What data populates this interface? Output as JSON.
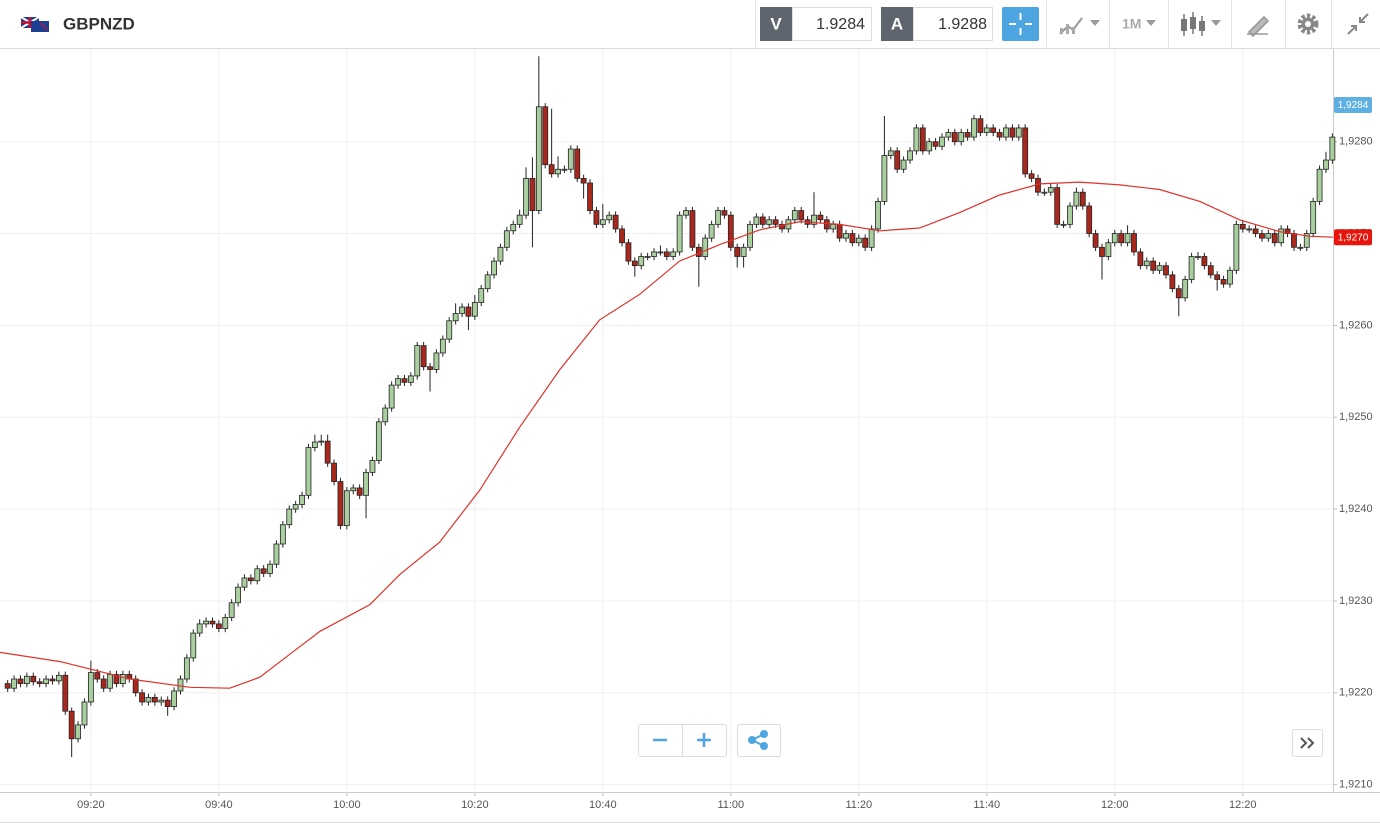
{
  "toolbar": {
    "symbol": "GBPNZD",
    "bid_label": "V",
    "bid": "1.9284",
    "ask_label": "A",
    "ask": "1.9288",
    "timeframe": "1M"
  },
  "chart_data": {
    "type": "candlestick",
    "x": [
      547,
      548,
      549,
      550,
      551,
      552,
      553,
      554,
      555,
      556,
      557,
      558,
      559,
      560,
      561,
      562,
      563,
      564,
      565,
      566,
      567,
      568,
      569,
      570,
      571,
      572,
      573,
      574,
      575,
      576,
      577,
      578,
      579,
      580,
      581,
      582,
      583,
      584,
      585,
      586,
      587,
      588,
      589,
      590,
      591,
      592,
      593,
      594,
      595,
      596,
      597,
      598,
      599,
      600,
      601,
      602,
      603,
      604,
      605,
      606,
      607,
      608,
      609,
      610,
      611,
      612,
      613,
      614,
      615,
      616,
      617,
      618,
      619,
      620,
      621,
      622,
      623,
      624,
      625,
      626,
      627,
      628,
      629,
      630,
      631,
      632,
      633,
      634,
      635,
      636,
      637,
      638,
      639,
      640,
      641,
      642,
      643,
      644,
      645,
      646,
      647,
      648,
      649,
      650,
      651,
      652,
      653,
      654,
      655,
      656,
      657,
      658,
      659,
      660,
      661,
      662,
      663,
      664,
      665,
      666,
      667,
      668,
      669,
      670,
      671,
      672,
      673,
      674,
      675,
      676,
      677,
      678,
      679,
      680,
      681,
      682,
      683,
      684,
      685,
      686,
      687,
      688,
      689,
      690,
      691,
      692,
      693,
      694,
      695,
      696,
      697,
      698,
      699,
      700,
      701,
      702,
      703,
      704,
      705,
      706,
      707,
      708,
      709,
      710,
      711,
      712,
      713,
      714,
      715,
      716,
      717,
      718,
      719,
      720,
      721,
      722,
      723,
      724,
      725,
      726,
      727,
      728,
      729,
      730,
      731,
      732,
      733,
      734,
      735,
      736,
      737,
      738,
      739,
      740,
      741,
      742,
      743,
      744,
      745,
      746,
      747,
      748,
      749,
      750,
      751,
      752,
      753,
      754
    ],
    "open": [
      1.9221,
      1.92205,
      1.92215,
      1.9221,
      1.92218,
      1.92212,
      1.9221,
      1.92215,
      1.92213,
      1.92219,
      1.9218,
      1.9215,
      1.92165,
      1.9219,
      1.92222,
      1.92215,
      1.92205,
      1.9222,
      1.9221,
      1.9222,
      1.92215,
      1.922,
      1.9219,
      1.92195,
      1.9219,
      1.92192,
      1.92185,
      1.92202,
      1.92215,
      1.92238,
      1.92265,
      1.92275,
      1.92278,
      1.92275,
      1.9227,
      1.92282,
      1.92298,
      1.92315,
      1.92325,
      1.92322,
      1.92335,
      1.9233,
      1.9234,
      1.92362,
      1.92383,
      1.924,
      1.92405,
      1.92415,
      1.92467,
      1.92473,
      1.92474,
      1.9245,
      1.9243,
      1.92382,
      1.9242,
      1.92423,
      1.92415,
      1.9244,
      1.92453,
      1.92495,
      1.9251,
      1.92535,
      1.92542,
      1.92538,
      1.92545,
      1.92578,
      1.92555,
      1.92552,
      1.9257,
      1.92585,
      1.92605,
      1.92613,
      1.9262,
      1.9261,
      1.92625,
      1.9264,
      1.92655,
      1.9267,
      1.92685,
      1.92703,
      1.9271,
      1.9272,
      1.9276,
      1.92725,
      1.92838,
      1.92775,
      1.92765,
      1.9277,
      1.9277,
      1.92792,
      1.9276,
      1.92755,
      1.92725,
      1.9271,
      1.92715,
      1.9272,
      1.92705,
      1.9269,
      1.9267,
      1.92665,
      1.92675,
      1.92675,
      1.9268,
      1.9268,
      1.92675,
      1.9268,
      1.9272,
      1.92725,
      1.92685,
      1.92675,
      1.92695,
      1.9271,
      1.92725,
      1.9272,
      1.92685,
      1.92675,
      1.92685,
      1.9271,
      1.92718,
      1.9271,
      1.92715,
      1.9271,
      1.92705,
      1.92715,
      1.92725,
      1.92715,
      1.9271,
      1.9272,
      1.92715,
      1.92705,
      1.9271,
      1.92695,
      1.927,
      1.9269,
      1.92695,
      1.92685,
      1.92705,
      1.92735,
      1.92785,
      1.9279,
      1.9277,
      1.9278,
      1.9279,
      1.92815,
      1.9279,
      1.928,
      1.92795,
      1.92805,
      1.9281,
      1.928,
      1.9281,
      1.92805,
      1.92825,
      1.9281,
      1.92815,
      1.9281,
      1.92805,
      1.92815,
      1.92805,
      1.92815,
      1.92765,
      1.9276,
      1.92745,
      1.92745,
      1.9275,
      1.9271,
      1.9271,
      1.9273,
      1.92745,
      1.9273,
      1.927,
      1.92685,
      1.92675,
      1.9269,
      1.927,
      1.9269,
      1.927,
      1.9268,
      1.92665,
      1.9267,
      1.9266,
      1.92665,
      1.92655,
      1.9264,
      1.9263,
      1.9265,
      1.92675,
      1.92675,
      1.92665,
      1.92655,
      1.9265,
      1.92645,
      1.9266,
      1.9271,
      1.92705,
      1.92705,
      1.927,
      1.92695,
      1.927,
      1.9269,
      1.92705,
      1.927,
      1.92685,
      1.92685,
      1.927,
      1.92735,
      1.9277,
      1.9278
    ],
    "high": [
      1.92214,
      1.92219,
      1.92219,
      1.92222,
      1.92222,
      1.92216,
      1.92219,
      1.92219,
      1.92223,
      1.92223,
      1.92184,
      1.92169,
      1.92194,
      1.92235,
      1.92226,
      1.92219,
      1.92224,
      1.92224,
      1.92224,
      1.92224,
      1.92219,
      1.92204,
      1.92199,
      1.92199,
      1.92196,
      1.92196,
      1.92206,
      1.92219,
      1.92242,
      1.92269,
      1.9228,
      1.92282,
      1.92282,
      1.92279,
      1.92286,
      1.92302,
      1.92319,
      1.92329,
      1.92329,
      1.92339,
      1.92339,
      1.92344,
      1.92366,
      1.92387,
      1.92404,
      1.92409,
      1.92419,
      1.92471,
      1.92481,
      1.92481,
      1.92481,
      1.92454,
      1.92434,
      1.92424,
      1.92427,
      1.92427,
      1.92444,
      1.92457,
      1.92499,
      1.92514,
      1.92539,
      1.92546,
      1.92546,
      1.92549,
      1.92582,
      1.92582,
      1.92559,
      1.92574,
      1.92589,
      1.92609,
      1.92624,
      1.92624,
      1.92624,
      1.92633,
      1.92644,
      1.92659,
      1.92674,
      1.92689,
      1.92707,
      1.92714,
      1.92726,
      1.92772,
      1.92783,
      1.92893,
      1.92842,
      1.92836,
      1.92784,
      1.92774,
      1.92796,
      1.92796,
      1.92764,
      1.92759,
      1.92729,
      1.92732,
      1.92724,
      1.92724,
      1.92709,
      1.92694,
      1.92674,
      1.92679,
      1.92679,
      1.92684,
      1.92687,
      1.92684,
      1.92684,
      1.92724,
      1.92729,
      1.92729,
      1.92689,
      1.92699,
      1.92714,
      1.92729,
      1.92729,
      1.92724,
      1.92689,
      1.92689,
      1.92714,
      1.92722,
      1.92722,
      1.92719,
      1.92719,
      1.92714,
      1.92719,
      1.92729,
      1.92729,
      1.92719,
      1.92745,
      1.92724,
      1.92719,
      1.92714,
      1.92714,
      1.92704,
      1.92704,
      1.92699,
      1.92699,
      1.92709,
      1.92739,
      1.92828,
      1.92794,
      1.92794,
      1.92784,
      1.92794,
      1.92819,
      1.92819,
      1.92804,
      1.92804,
      1.92809,
      1.92814,
      1.92814,
      1.92814,
      1.92814,
      1.92829,
      1.92829,
      1.92819,
      1.92819,
      1.92814,
      1.92819,
      1.92819,
      1.92819,
      1.92819,
      1.92769,
      1.92764,
      1.92749,
      1.92754,
      1.92754,
      1.92714,
      1.92734,
      1.9275,
      1.92749,
      1.92734,
      1.92704,
      1.92689,
      1.92694,
      1.92704,
      1.92704,
      1.92709,
      1.92704,
      1.92684,
      1.92674,
      1.92674,
      1.92669,
      1.92669,
      1.92659,
      1.92644,
      1.92654,
      1.92679,
      1.9268,
      1.92679,
      1.92669,
      1.92659,
      1.92654,
      1.92664,
      1.92714,
      1.92714,
      1.92709,
      1.92709,
      1.92704,
      1.92704,
      1.92704,
      1.92709,
      1.92709,
      1.92704,
      1.92689,
      1.92704,
      1.92739,
      1.92774,
      1.92789,
      1.92809
    ],
    "low": [
      1.92201,
      1.92201,
      1.92206,
      1.92206,
      1.92208,
      1.92206,
      1.92206,
      1.92209,
      1.92209,
      1.92176,
      1.9213,
      1.92146,
      1.92161,
      1.92186,
      1.92211,
      1.92201,
      1.92201,
      1.92206,
      1.92206,
      1.92211,
      1.92196,
      1.92186,
      1.92186,
      1.92186,
      1.92186,
      1.92175,
      1.92181,
      1.92198,
      1.92211,
      1.92234,
      1.92261,
      1.92271,
      1.92271,
      1.92266,
      1.92266,
      1.92278,
      1.92294,
      1.92311,
      1.92318,
      1.92318,
      1.92326,
      1.92326,
      1.92336,
      1.92358,
      1.92379,
      1.92396,
      1.92401,
      1.92411,
      1.92463,
      1.92469,
      1.92446,
      1.92426,
      1.92378,
      1.92378,
      1.92416,
      1.92411,
      1.9239,
      1.92436,
      1.92449,
      1.92491,
      1.92506,
      1.92531,
      1.92534,
      1.92534,
      1.92541,
      1.92551,
      1.92528,
      1.92548,
      1.92566,
      1.92581,
      1.92601,
      1.92609,
      1.92595,
      1.92606,
      1.92621,
      1.92636,
      1.92651,
      1.92666,
      1.92681,
      1.92699,
      1.92706,
      1.92716,
      1.92685,
      1.92721,
      1.92771,
      1.92761,
      1.92761,
      1.92766,
      1.92766,
      1.92756,
      1.92738,
      1.92721,
      1.92706,
      1.92706,
      1.92711,
      1.92701,
      1.92686,
      1.92666,
      1.92653,
      1.92661,
      1.92671,
      1.92671,
      1.92676,
      1.92671,
      1.92671,
      1.92676,
      1.92716,
      1.92681,
      1.92642,
      1.92671,
      1.92691,
      1.92706,
      1.92716,
      1.92681,
      1.92663,
      1.92663,
      1.92681,
      1.92706,
      1.92706,
      1.92706,
      1.92706,
      1.92701,
      1.92701,
      1.92711,
      1.92711,
      1.92706,
      1.92706,
      1.92711,
      1.92701,
      1.92701,
      1.92691,
      1.92691,
      1.92686,
      1.92686,
      1.92681,
      1.92681,
      1.92701,
      1.92731,
      1.92781,
      1.92766,
      1.92766,
      1.92776,
      1.92786,
      1.92786,
      1.92786,
      1.92791,
      1.92791,
      1.92801,
      1.92796,
      1.92796,
      1.92801,
      1.92801,
      1.92806,
      1.92806,
      1.92806,
      1.92801,
      1.92801,
      1.92801,
      1.92801,
      1.92761,
      1.92756,
      1.92741,
      1.92741,
      1.92741,
      1.92706,
      1.92706,
      1.92706,
      1.92726,
      1.92726,
      1.92696,
      1.92681,
      1.9265,
      1.92671,
      1.92686,
      1.92686,
      1.92686,
      1.92676,
      1.92661,
      1.92661,
      1.92656,
      1.92656,
      1.92651,
      1.92636,
      1.9261,
      1.92626,
      1.92646,
      1.92671,
      1.92661,
      1.92651,
      1.92638,
      1.92641,
      1.92641,
      1.92656,
      1.92701,
      1.92701,
      1.92696,
      1.92691,
      1.92691,
      1.92686,
      1.92686,
      1.92696,
      1.92681,
      1.92681,
      1.92681,
      1.92696,
      1.92731,
      1.92766,
      1.92776
    ],
    "close": [
      1.92205,
      1.92215,
      1.9221,
      1.92218,
      1.92212,
      1.9221,
      1.92215,
      1.92213,
      1.92219,
      1.9218,
      1.9215,
      1.92165,
      1.9219,
      1.92222,
      1.92215,
      1.92205,
      1.9222,
      1.9221,
      1.9222,
      1.92215,
      1.922,
      1.9219,
      1.92195,
      1.9219,
      1.92192,
      1.92185,
      1.92202,
      1.92215,
      1.92238,
      1.92265,
      1.92275,
      1.92278,
      1.92275,
      1.9227,
      1.92282,
      1.92298,
      1.92315,
      1.92325,
      1.92322,
      1.92335,
      1.9233,
      1.9234,
      1.92362,
      1.92383,
      1.924,
      1.92405,
      1.92415,
      1.92467,
      1.92473,
      1.92474,
      1.9245,
      1.9243,
      1.92382,
      1.9242,
      1.92423,
      1.92415,
      1.9244,
      1.92453,
      1.92495,
      1.9251,
      1.92535,
      1.92542,
      1.92538,
      1.92545,
      1.92578,
      1.92555,
      1.92552,
      1.9257,
      1.92585,
      1.92605,
      1.92613,
      1.9262,
      1.9261,
      1.92625,
      1.9264,
      1.92655,
      1.9267,
      1.92685,
      1.92703,
      1.9271,
      1.9272,
      1.9276,
      1.92725,
      1.92838,
      1.92775,
      1.92765,
      1.9277,
      1.9277,
      1.92792,
      1.9276,
      1.92755,
      1.92725,
      1.9271,
      1.92715,
      1.9272,
      1.92705,
      1.9269,
      1.9267,
      1.92665,
      1.92675,
      1.92675,
      1.9268,
      1.9268,
      1.92675,
      1.9268,
      1.9272,
      1.92725,
      1.92685,
      1.92675,
      1.92695,
      1.9271,
      1.92725,
      1.9272,
      1.92685,
      1.92675,
      1.92685,
      1.9271,
      1.92718,
      1.9271,
      1.92715,
      1.9271,
      1.92705,
      1.92715,
      1.92725,
      1.92715,
      1.9271,
      1.9272,
      1.92715,
      1.92705,
      1.9271,
      1.92695,
      1.927,
      1.9269,
      1.92695,
      1.92685,
      1.92705,
      1.92735,
      1.92785,
      1.9279,
      1.9277,
      1.9278,
      1.9279,
      1.92815,
      1.9279,
      1.928,
      1.92795,
      1.92805,
      1.9281,
      1.928,
      1.9281,
      1.92805,
      1.92825,
      1.9281,
      1.92815,
      1.9281,
      1.92805,
      1.92815,
      1.92805,
      1.92815,
      1.92765,
      1.9276,
      1.92745,
      1.92745,
      1.9275,
      1.9271,
      1.9271,
      1.9273,
      1.92745,
      1.9273,
      1.927,
      1.92685,
      1.92675,
      1.9269,
      1.927,
      1.9269,
      1.927,
      1.9268,
      1.92665,
      1.9267,
      1.9266,
      1.92665,
      1.92655,
      1.9264,
      1.9263,
      1.9265,
      1.92675,
      1.92675,
      1.92665,
      1.92655,
      1.9265,
      1.92645,
      1.9266,
      1.9271,
      1.92705,
      1.92705,
      1.927,
      1.92695,
      1.927,
      1.9269,
      1.92705,
      1.927,
      1.92685,
      1.92685,
      1.927,
      1.92735,
      1.9277,
      1.9278,
      1.92805
    ],
    "up_color": "#a9cf9f",
    "down_color": "#a9281e",
    "overlays": [
      {
        "type": "line",
        "color": "#e0312b",
        "x": [
          545.8,
          555.2,
          566.1,
          575.5,
          581.7,
          586.4,
          591.1,
          595.8,
          603.6,
          608.3,
          614.5,
          620.8,
          627.0,
          633.3,
          639.5,
          645.8,
          652.0,
          658.3,
          664.5,
          670.8,
          677.0,
          683.3,
          689.5,
          695.8,
          702.0,
          708.3,
          714.5,
          720.8,
          727.0,
          733.3,
          739.5,
          745.8,
          750.5,
          754.1
        ],
        "values": [
          1.92244,
          1.92234,
          1.92215,
          1.92206,
          1.92205,
          1.92217,
          1.92242,
          1.92267,
          1.92296,
          1.92329,
          1.92364,
          1.92421,
          1.92489,
          1.92552,
          1.92606,
          1.92634,
          1.9267,
          1.92688,
          1.92704,
          1.92713,
          1.9271,
          1.92703,
          1.92706,
          1.92723,
          1.92742,
          1.92754,
          1.92756,
          1.92753,
          1.92748,
          1.92735,
          1.92715,
          1.92702,
          1.92697,
          1.92696
        ]
      }
    ],
    "price_labels": [
      {
        "value": 1.9284,
        "label": "1,9284",
        "color": "#5fb0e2"
      },
      {
        "value": 1.92696,
        "label": "1,9270",
        "color": "#e8150c"
      }
    ],
    "xlim": [
      545.8,
      754.1
    ],
    "ylim": [
      1.92092,
      1.92902
    ],
    "xticks": [
      {
        "value": 560,
        "label": "09:20"
      },
      {
        "value": 580,
        "label": "09:40"
      },
      {
        "value": 600,
        "label": "10:00"
      },
      {
        "value": 620,
        "label": "10:20"
      },
      {
        "value": 640,
        "label": "10:40"
      },
      {
        "value": 660,
        "label": "11:00"
      },
      {
        "value": 680,
        "label": "11:20"
      },
      {
        "value": 700,
        "label": "11:40"
      },
      {
        "value": 720,
        "label": "12:00"
      },
      {
        "value": 740,
        "label": "12:20"
      }
    ],
    "yticks": [
      {
        "value": 1.921,
        "label": "1,9210"
      },
      {
        "value": 1.922,
        "label": "1,9220"
      },
      {
        "value": 1.923,
        "label": "1,9230"
      },
      {
        "value": 1.924,
        "label": "1,9240"
      },
      {
        "value": 1.925,
        "label": "1,9250"
      },
      {
        "value": 1.926,
        "label": "1,9260"
      },
      {
        "value": 1.927,
        "label": "1,9270"
      },
      {
        "value": 1.928,
        "label": "1,9280"
      }
    ],
    "grid": true
  }
}
